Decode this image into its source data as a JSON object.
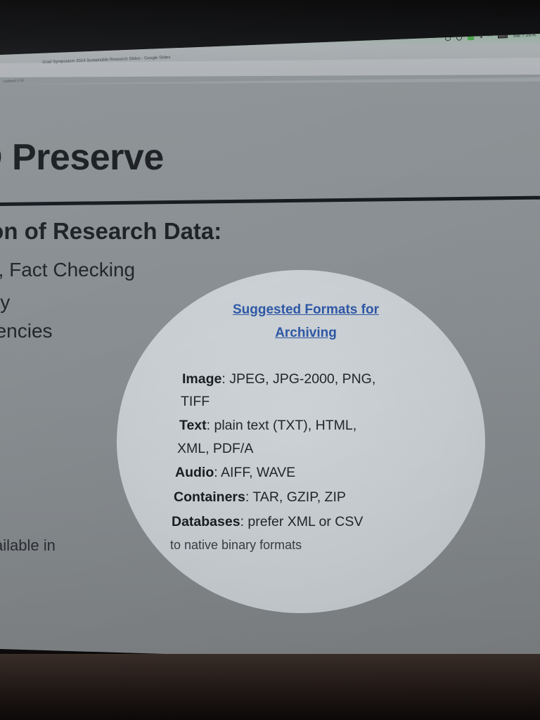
{
  "browser": {
    "tab_title": "Grad Symposium 2014 Sustainable Research Slides - Google Slides",
    "tab_subtitle": "Updated 5:30",
    "clock": "Sat 7:26 A"
  },
  "slide": {
    "title": "D Preserve",
    "subheading": "ion of Research Data:",
    "bullets": [
      "n, Fact Checking",
      "lity",
      "gencies",
      "",
      "ailable in"
    ]
  },
  "callout": {
    "title_line1": "Suggested Formats for",
    "title_line2": "Archiving",
    "formats": [
      {
        "label": "Image",
        "value": ": JPEG, JPG-2000, PNG,"
      },
      {
        "label": "",
        "value": "TIFF"
      },
      {
        "label": "Text",
        "value": ": plain text (TXT), HTML,"
      },
      {
        "label": "",
        "value": "XML, PDF/A"
      },
      {
        "label": "Audio",
        "value": ": AIFF, WAVE"
      },
      {
        "label": "Containers",
        "value": ": TAR, GZIP, ZIP"
      },
      {
        "label": "Databases",
        "value": ": prefer XML or CSV"
      },
      {
        "label": "",
        "value": "to native binary formats"
      }
    ],
    "link_color": "#2f58a6"
  }
}
